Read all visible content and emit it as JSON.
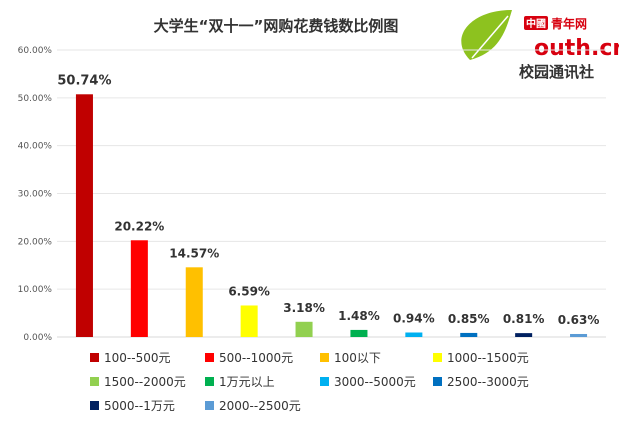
{
  "chart_data": {
    "type": "bar",
    "title": "大学生“双十一”网购花费钱数比例图",
    "categories": [
      "100--500元",
      "500--1000元",
      "100以下",
      "1000--1500元",
      "1500--2000元",
      "1万元以上",
      "3000--5000元",
      "2500--3000元",
      "5000--1万元",
      "2000--2500元"
    ],
    "values": [
      50.74,
      20.22,
      14.57,
      6.59,
      3.18,
      1.48,
      0.94,
      0.85,
      0.81,
      0.63
    ],
    "value_labels": [
      "50.74%",
      "20.22%",
      "14.57%",
      "6.59%",
      "3.18%",
      "1.48%",
      "0.94%",
      "0.85%",
      "0.81%",
      "0.63%"
    ],
    "colors": [
      "#c00000",
      "#ff0000",
      "#ffc000",
      "#ffff00",
      "#92d050",
      "#00b050",
      "#00b0f0",
      "#0070c0",
      "#002060",
      "#5b9bd5"
    ],
    "ylim": [
      0,
      60
    ],
    "y_ticks": [
      0,
      10,
      20,
      30,
      40,
      50,
      60
    ],
    "y_tick_labels": [
      "0.00%",
      "10.00%",
      "20.00%",
      "30.00%",
      "40.00%",
      "50.00%",
      "60.00%"
    ],
    "grid": true,
    "legend": "bottom",
    "xlabel": "",
    "ylabel": ""
  },
  "logo": {
    "brand_cn": "中國",
    "name_cn": "青年网",
    "name_en": "outh.cn",
    "sub_cn": "校园通讯社",
    "leaf_color": "#8dc21f",
    "red_color": "#d7000f"
  }
}
